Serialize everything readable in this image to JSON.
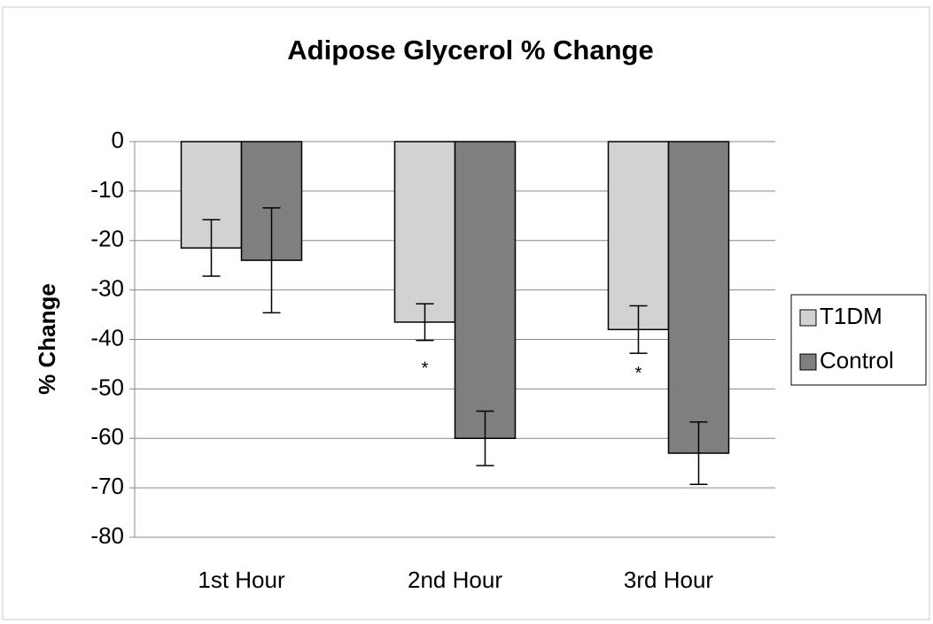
{
  "chart_data": {
    "type": "bar",
    "title": "Adipose Glycerol % Change",
    "y_label": "% Change",
    "categories": [
      "1st Hour",
      "2nd Hour",
      "3rd Hour"
    ],
    "series": [
      {
        "name": "T1DM",
        "color": "#d2d2d2",
        "values": [
          -21.5,
          -36.5,
          -38
        ],
        "errors": [
          5.7,
          3.7,
          4.8
        ]
      },
      {
        "name": "Control",
        "color": "#7f7f7f",
        "values": [
          -24,
          -60,
          -63
        ],
        "errors": [
          10.6,
          5.5,
          6.3
        ]
      }
    ],
    "annotations": [
      {
        "text": "*",
        "category": "2nd Hour",
        "series": "T1DM",
        "y": -46
      },
      {
        "text": "*",
        "category": "3rd Hour",
        "series": "T1DM",
        "y": -47
      }
    ],
    "ylim": [
      -80,
      0
    ],
    "yticks": [
      0,
      -10,
      -20,
      -30,
      -40,
      -50,
      -60,
      -70,
      -80
    ],
    "grid": true,
    "legend": "right"
  }
}
